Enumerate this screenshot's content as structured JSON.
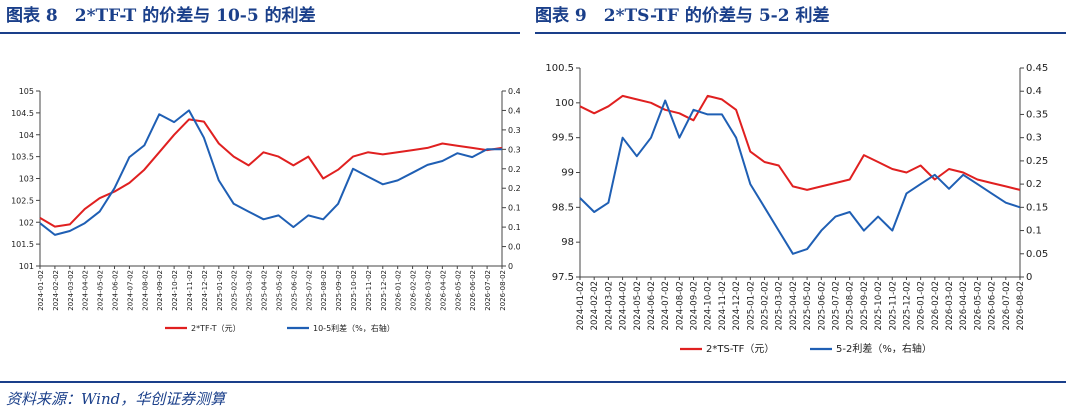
{
  "page": {
    "left_title": "图表 8　2*TF-T 的价差与 10-5 的利差",
    "right_title": "图表 9　2*TS-TF 的价差与 5-2 利差",
    "source": "资料来源：Wind，华创证券测算"
  },
  "colors": {
    "title": "#1a3f8a",
    "red_series": "#e02020",
    "blue_series": "#1f5fb4",
    "axis": "#444444"
  },
  "chart_data": [
    {
      "type": "line",
      "title": "",
      "x": [
        "2024-01-02",
        "2024-02-02",
        "2024-03-02",
        "2024-04-02",
        "2024-05-02",
        "2024-06-02",
        "2024-07-02",
        "2024-08-02",
        "2024-09-02",
        "2024-10-02",
        "2024-11-02",
        "2024-12-02",
        "2025-01-02",
        "2025-02-02",
        "2025-03-02",
        "2025-04-02",
        "2025-05-02",
        "2025-06-02",
        "2025-07-02",
        "2025-08-02",
        "2025-09-02",
        "2025-10-02",
        "2025-11-02",
        "2025-12-02",
        "2026-01-02",
        "2026-02-02",
        "2026-03-02",
        "2026-04-02",
        "2026-05-02",
        "2026-06-02",
        "2026-07-02",
        "2026-08-02"
      ],
      "x_tick_labels": [
        "2024-01-02",
        "2024-02-02",
        "2024-03-02",
        "2024-04-02",
        "2024-05-02",
        "2024-06-02",
        "2024-07-02",
        "2024-08-02",
        "2024-09-02",
        "2024-10-02",
        "2024-11-02",
        "2024-12-02",
        "2025-01-02",
        "2025-02-02",
        "2025-03-02",
        "2025-04-02",
        "2025-05-02",
        "2025-06-02",
        "2025-07-02",
        "2025-08-02",
        "2025-09-02",
        "2025-10-02",
        "2025-11-02",
        "2025-12-02",
        "2026-01-02",
        "2026-02-02",
        "2026-03-02",
        "2026-04-02",
        "2026-05-02",
        "2026-06-02",
        "2026-07-02",
        "2026-08-02"
      ],
      "y_left": {
        "ylim": [
          101,
          105
        ],
        "ticks": [
          "101",
          "101.5",
          "102",
          "102.5",
          "103",
          "103.5",
          "104",
          "104.5",
          "105"
        ]
      },
      "y_right": {
        "ylim": [
          0,
          0.45
        ],
        "ticks": [
          "0",
          "0.05",
          "0.1",
          "0.15",
          "0.2",
          "0.25",
          "0.3",
          "0.35",
          "0.4",
          "0.45"
        ]
      },
      "series": [
        {
          "name": "2*TF-T（元）",
          "axis": "left",
          "color": "#e02020",
          "values": [
            102.1,
            101.9,
            101.95,
            102.3,
            102.55,
            102.7,
            102.9,
            103.2,
            103.6,
            104.0,
            104.35,
            104.3,
            103.8,
            103.5,
            103.3,
            103.6,
            103.5,
            103.3,
            103.5,
            103.0,
            103.2,
            103.5,
            103.6,
            103.55,
            103.6,
            103.65,
            103.7,
            103.8,
            103.75,
            103.7,
            103.65,
            103.7
          ]
        },
        {
          "name": "10-5利差（%，右轴）",
          "axis": "right",
          "color": "#1f5fb4",
          "values": [
            0.11,
            0.08,
            0.09,
            0.11,
            0.14,
            0.2,
            0.28,
            0.31,
            0.39,
            0.37,
            0.4,
            0.33,
            0.22,
            0.16,
            0.14,
            0.12,
            0.13,
            0.1,
            0.13,
            0.12,
            0.16,
            0.25,
            0.23,
            0.21,
            0.22,
            0.24,
            0.26,
            0.27,
            0.29,
            0.28,
            0.3,
            0.3
          ]
        }
      ],
      "legend": {
        "placement": "bottom-center",
        "items": [
          "2*TF-T（元）",
          "10-5利差（%，右轴）"
        ]
      },
      "grid": false
    },
    {
      "type": "line",
      "title": "",
      "x": [
        "2024-01-02",
        "2024-02-02",
        "2024-03-02",
        "2024-04-02",
        "2024-05-02",
        "2024-06-02",
        "2024-07-02",
        "2024-08-02",
        "2024-09-02",
        "2024-10-02",
        "2024-11-02",
        "2024-12-02",
        "2025-01-02",
        "2025-02-02",
        "2025-03-02",
        "2025-04-02",
        "2025-05-02",
        "2025-06-02",
        "2025-07-02",
        "2025-08-02",
        "2025-09-02",
        "2025-10-02",
        "2025-11-02",
        "2025-12-02",
        "2026-01-02",
        "2026-02-02",
        "2026-03-02",
        "2026-04-02",
        "2026-05-02",
        "2026-06-02",
        "2026-07-02",
        "2026-08-02"
      ],
      "x_tick_labels": [
        "2024-01-02",
        "2024-02-02",
        "2024-03-02",
        "2024-04-02",
        "2024-05-02",
        "2024-06-02",
        "2024-07-02",
        "2024-08-02",
        "2024-09-02",
        "2024-10-02",
        "2024-11-02",
        "2024-12-02",
        "2025-01-02",
        "2025-02-02",
        "2025-03-02",
        "2025-04-02",
        "2025-05-02",
        "2025-06-02",
        "2025-07-02",
        "2025-08-02",
        "2025-09-02",
        "2025-10-02",
        "2025-11-02",
        "2025-12-02",
        "2026-01-02",
        "2026-02-02",
        "2026-03-02",
        "2026-04-02",
        "2026-05-02",
        "2026-06-02",
        "2026-07-02",
        "2026-08-02"
      ],
      "y_left": {
        "ylim": [
          97.5,
          100.5
        ],
        "ticks": [
          "97.5",
          "98",
          "98.5",
          "99",
          "99.5",
          "100",
          "100.5"
        ]
      },
      "y_right": {
        "ylim": [
          0,
          0.45
        ],
        "ticks": [
          "0",
          "0.05",
          "0.1",
          "0.15",
          "0.2",
          "0.25",
          "0.3",
          "0.35",
          "0.4",
          "0.45"
        ]
      },
      "series": [
        {
          "name": "2*TS-TF（元）",
          "axis": "left",
          "color": "#e02020",
          "values": [
            99.95,
            99.85,
            99.95,
            100.1,
            100.05,
            100.0,
            99.9,
            99.85,
            99.75,
            100.1,
            100.05,
            99.9,
            99.3,
            99.15,
            99.1,
            98.8,
            98.75,
            98.8,
            98.85,
            98.9,
            99.25,
            99.15,
            99.05,
            99.0,
            99.1,
            98.9,
            99.05,
            99.0,
            98.9,
            98.85,
            98.8,
            98.75
          ]
        },
        {
          "name": "5-2利差（%，右轴）",
          "axis": "right",
          "color": "#1f5fb4",
          "values": [
            0.17,
            0.14,
            0.16,
            0.3,
            0.26,
            0.3,
            0.38,
            0.3,
            0.36,
            0.35,
            0.35,
            0.3,
            0.2,
            0.15,
            0.1,
            0.05,
            0.06,
            0.1,
            0.13,
            0.14,
            0.1,
            0.13,
            0.1,
            0.18,
            0.2,
            0.22,
            0.19,
            0.22,
            0.2,
            0.18,
            0.16,
            0.15
          ]
        }
      ],
      "legend": {
        "placement": "bottom-center",
        "items": [
          "2*TS-TF（元）",
          "5-2利差（%，右轴）"
        ]
      },
      "grid": false
    }
  ]
}
